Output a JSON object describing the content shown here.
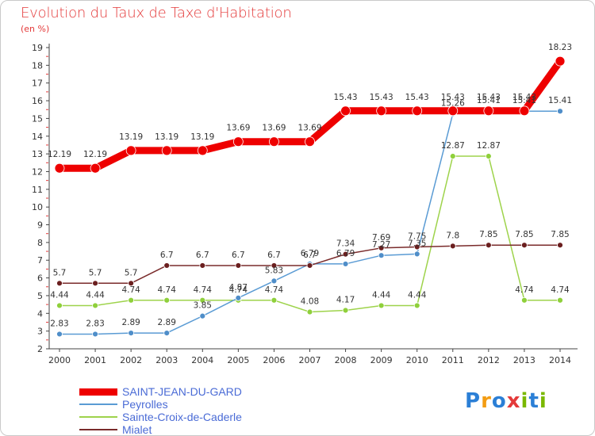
{
  "title": "Evolution du Taux de Taxe d'Habitation",
  "unit_label": "(en %)",
  "brand": {
    "text": "Proxiti",
    "letters": [
      "P",
      "r",
      "o",
      "x",
      "i",
      "t",
      "i"
    ],
    "colors": [
      "#2b7fd6",
      "#f39c12",
      "#2b7fd6",
      "#e43a3a",
      "#7ab800",
      "#2b7fd6",
      "#7ab800"
    ]
  },
  "chart_data": {
    "type": "line",
    "x": [
      2000,
      2001,
      2002,
      2003,
      2004,
      2005,
      2006,
      2007,
      2008,
      2009,
      2010,
      2011,
      2012,
      2013,
      2014
    ],
    "ylim": [
      2,
      19
    ],
    "yticks": [
      2,
      3,
      4,
      5,
      6,
      7,
      8,
      9,
      10,
      11,
      12,
      13,
      14,
      15,
      16,
      17,
      18,
      19
    ],
    "grid": false,
    "legend": "bottom-left",
    "series": [
      {
        "name": "SAINT-JEAN-DU-GARD",
        "color": "#ee0000",
        "width": 9,
        "marker_fill": "#ee0000",
        "marker_r": 6,
        "values": [
          12.19,
          12.19,
          13.19,
          13.19,
          13.19,
          13.69,
          13.69,
          13.69,
          15.43,
          15.43,
          15.43,
          15.43,
          15.43,
          15.43,
          18.23
        ],
        "labels": [
          "12.19",
          "12.19",
          "13.19",
          "13.19",
          "13.19",
          "13.69",
          "13.69",
          "13.69",
          "15.43",
          "15.43",
          "15.43",
          "15.43",
          "15.43",
          "15.43",
          "18.23"
        ]
      },
      {
        "name": "Peyrolles",
        "color": "#5a9bd4",
        "width": 1.5,
        "marker_fill": "#4f8ec9",
        "marker_r": 3.5,
        "values": [
          2.83,
          2.83,
          2.89,
          2.89,
          3.85,
          4.87,
          5.83,
          6.79,
          6.79,
          7.27,
          7.35,
          15.26,
          15.41,
          15.41,
          15.41
        ],
        "labels": [
          "2.83",
          "2.83",
          "2.89",
          "2.89",
          "3.85",
          "4.87",
          "5.83",
          "6.79",
          "6.79",
          "7.27",
          "7.35",
          "15.26",
          "15.41",
          "15.41",
          "15.41"
        ]
      },
      {
        "name": "Sainte-Croix-de-Caderle",
        "color": "#9ed34b",
        "width": 1.5,
        "marker_fill": "#8fd03b",
        "marker_r": 3.5,
        "values": [
          4.44,
          4.44,
          4.74,
          4.74,
          4.74,
          4.74,
          4.74,
          4.08,
          4.17,
          4.44,
          4.44,
          12.87,
          12.87,
          4.74,
          4.74
        ],
        "labels": [
          "4.44",
          "4.44",
          "4.74",
          "4.74",
          "4.74",
          "4.74",
          "4.74",
          "4.08",
          "4.17",
          "4.44",
          "4.44",
          "12.87",
          "12.87",
          "4.74",
          "4.74"
        ]
      },
      {
        "name": "Mialet",
        "color": "#7a2b2b",
        "width": 1.5,
        "marker_fill": "#6b1f1f",
        "marker_r": 3.5,
        "values": [
          5.7,
          5.7,
          5.7,
          6.7,
          6.7,
          6.7,
          6.7,
          6.7,
          7.34,
          7.69,
          7.75,
          7.8,
          7.85,
          7.85,
          7.85
        ],
        "labels": [
          "5.7",
          "5.7",
          "5.7",
          "6.7",
          "6.7",
          "6.7",
          "6.7",
          "6.7",
          "7.34",
          "7.69",
          "7.75",
          "7.8",
          "7.85",
          "7.85",
          "7.85"
        ]
      }
    ]
  }
}
